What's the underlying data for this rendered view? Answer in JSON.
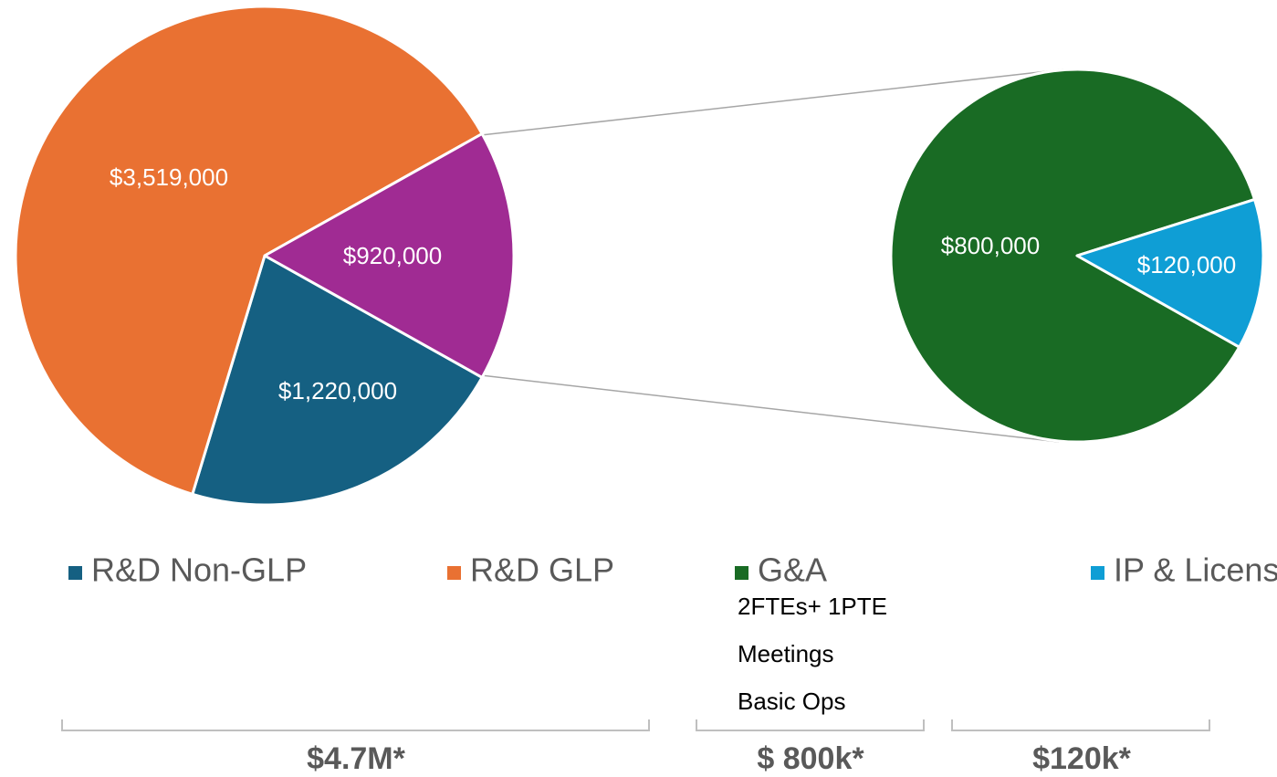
{
  "chart_data": [
    {
      "type": "pie",
      "categories": [
        "R&D Non-GLP",
        "R&D GLP",
        null
      ],
      "values": [
        1220000,
        3519000,
        920000
      ],
      "value_labels": [
        "$1,220,000",
        "$3,519,000",
        "$920,000"
      ],
      "colors": [
        "#156082",
        "#e97132",
        "#a02b93"
      ]
    },
    {
      "type": "pie",
      "categories": [
        "G&A",
        "IP & Licensing"
      ],
      "values": [
        800000,
        120000
      ],
      "value_labels": [
        "$800,000",
        "$120,000"
      ],
      "colors": [
        "#196b24",
        "#0f9ed5"
      ]
    }
  ],
  "annotations": {
    "notes": [
      "2FTEs+ 1PTE",
      "Meetings",
      "Basic Ops"
    ],
    "brackets": [
      "$4.7M*",
      "$ 800k*",
      "$120k*"
    ]
  }
}
